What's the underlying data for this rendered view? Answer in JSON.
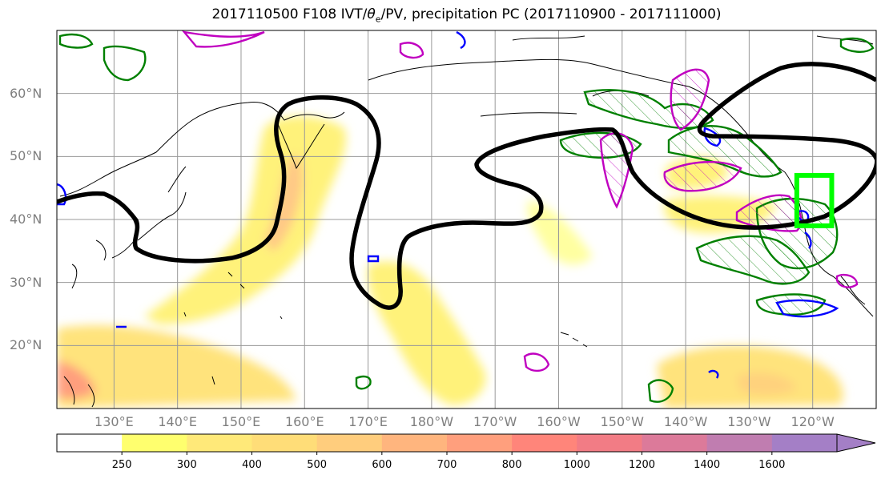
{
  "title": {
    "prefix": "2017110500 F108 IVT/",
    "theta": "θ",
    "theta_sub": "e",
    "suffix": "/PV, precipitation PC (2017110900 - 2017111000)"
  },
  "map": {
    "projection": "cylindrical",
    "lon_range": [
      121,
      250
    ],
    "lat_range": [
      10,
      70
    ],
    "lat_ticks": [
      "20°N",
      "30°N",
      "40°N",
      "50°N",
      "60°N"
    ],
    "lon_ticks": [
      "130°E",
      "140°E",
      "150°E",
      "160°E",
      "170°E",
      "180°W",
      "170°W",
      "160°W",
      "150°W",
      "140°W",
      "130°W",
      "120°W"
    ],
    "colors": {
      "coast": "#000000",
      "pv_contour": "#000000",
      "precip_pc": "#008000",
      "pos_contour": "#0000ff",
      "theta_contour": "#c000c0",
      "highlight_box": "#00ff00"
    },
    "highlight_box": {
      "lon": [
        237.5,
        243
      ],
      "lat": [
        39,
        47
      ]
    }
  },
  "colorbar": {
    "ticks": [
      "250",
      "300",
      "400",
      "500",
      "600",
      "700",
      "800",
      "1000",
      "1200",
      "1400",
      "1600"
    ],
    "colors": [
      "#ffffff",
      "#ffff6e",
      "#ffe979",
      "#ffdd78",
      "#ffcd7d",
      "#ffb57e",
      "#ff9f7d",
      "#ff857a",
      "#f27c85",
      "#dc7a9a",
      "#c07db0",
      "#a47fc6"
    ],
    "extend": "max"
  }
}
